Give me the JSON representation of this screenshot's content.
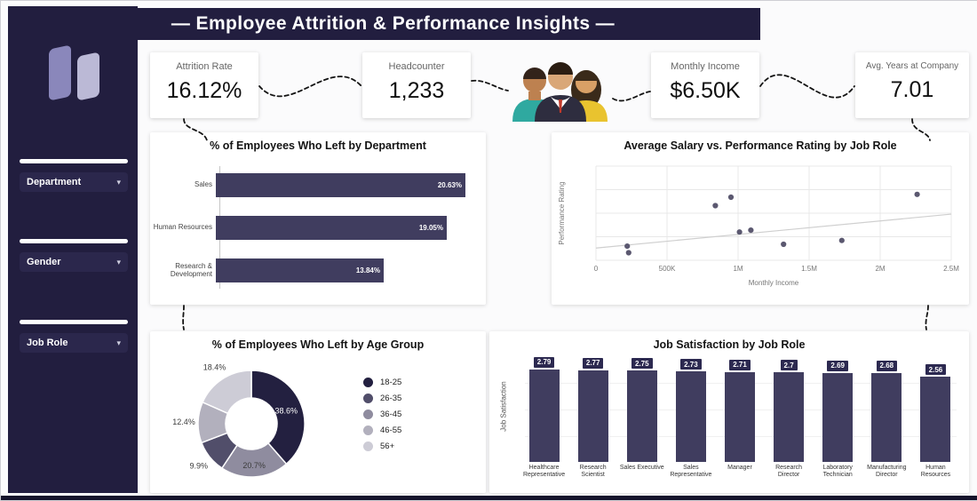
{
  "header": {
    "title": "— Employee Attrition & Performance Insights —"
  },
  "sidebar": {
    "filters": [
      {
        "label": "Department"
      },
      {
        "label": "Gender"
      },
      {
        "label": "Job Role"
      }
    ]
  },
  "kpis": [
    {
      "label": "Attrition Rate",
      "value": "16.12%"
    },
    {
      "label": "Headcounter",
      "value": "1,233"
    },
    {
      "label": "Monthly Income",
      "value": "$6.50K"
    },
    {
      "label": "Avg. Years at Company",
      "value": "7.01"
    }
  ],
  "colors": {
    "sidebar": "#221e3f",
    "bar": "#403d5f",
    "value_box": "#2c2950",
    "accent_dark": "#232040"
  },
  "chart_data": [
    {
      "type": "bar",
      "orientation": "horizontal",
      "title": "% of Employees Who Left by Department",
      "categories": [
        "Sales",
        "Human Resources",
        "Research & Development"
      ],
      "values": [
        20.63,
        19.05,
        13.84
      ],
      "labels": [
        "20.63%",
        "19.05%",
        "13.84%"
      ],
      "xlim": [
        0,
        22
      ]
    },
    {
      "type": "scatter",
      "title": "Average Salary vs. Performance Rating by Job Role",
      "xlabel": "Monthly Income",
      "ylabel": "Performance Rating",
      "x_ticks": [
        "0",
        "500K",
        "1M",
        "1.5M",
        "2M",
        "2.5M"
      ],
      "xlim": [
        0,
        2500000
      ],
      "ylim": [
        2.5,
        3.5
      ],
      "points": [
        {
          "x": 220000,
          "y": 2.65
        },
        {
          "x": 230000,
          "y": 2.58
        },
        {
          "x": 840000,
          "y": 3.08
        },
        {
          "x": 950000,
          "y": 3.17
        },
        {
          "x": 1010000,
          "y": 2.8
        },
        {
          "x": 1090000,
          "y": 2.82
        },
        {
          "x": 1320000,
          "y": 2.67
        },
        {
          "x": 1730000,
          "y": 2.71
        },
        {
          "x": 2260000,
          "y": 3.2
        }
      ],
      "trendline": {
        "x0": 0,
        "y0": 2.63,
        "x1": 2500000,
        "y1": 2.99
      }
    },
    {
      "type": "pie",
      "donut": true,
      "title": "% of Employees Who Left by Age Group",
      "slices": [
        {
          "label": "18-25",
          "value": 38.6,
          "text": "38.6%",
          "color": "#232040"
        },
        {
          "label": "36-45",
          "value": 20.7,
          "text": "20.7%",
          "color": "#8f8c9f"
        },
        {
          "label": "26-35",
          "value": 9.9,
          "text": "9.9%",
          "color": "#514e6a"
        },
        {
          "label": "46-55",
          "value": 12.4,
          "text": "12.4%",
          "color": "#b2b0bd"
        },
        {
          "label": "56+",
          "value": 18.4,
          "text": "18.4%",
          "color": "#cdccd6"
        }
      ],
      "legend": [
        {
          "label": "18-25",
          "color": "#232040"
        },
        {
          "label": "26-35",
          "color": "#514e6a"
        },
        {
          "label": "36-45",
          "color": "#8f8c9f"
        },
        {
          "label": "46-55",
          "color": "#b2b0bd"
        },
        {
          "label": "56+",
          "color": "#cdccd6"
        }
      ]
    },
    {
      "type": "bar",
      "orientation": "vertical",
      "title": "Job Satisfaction by Job Role",
      "ylabel": "Job Satisfaction",
      "categories": [
        "Healthcare Representative",
        "Research Scientist",
        "Sales Executive",
        "Sales Representative",
        "Manager",
        "Research Director",
        "Laboratory Technician",
        "Manufacturing Director",
        "Human Resources"
      ],
      "values": [
        2.79,
        2.77,
        2.75,
        2.73,
        2.71,
        2.7,
        2.69,
        2.68,
        2.56
      ],
      "labels": [
        "2.79",
        "2.77",
        "2.75",
        "2.73",
        "2.71",
        "2.7",
        "2.69",
        "2.68",
        "2.56"
      ],
      "ylim": [
        0,
        3
      ]
    }
  ]
}
